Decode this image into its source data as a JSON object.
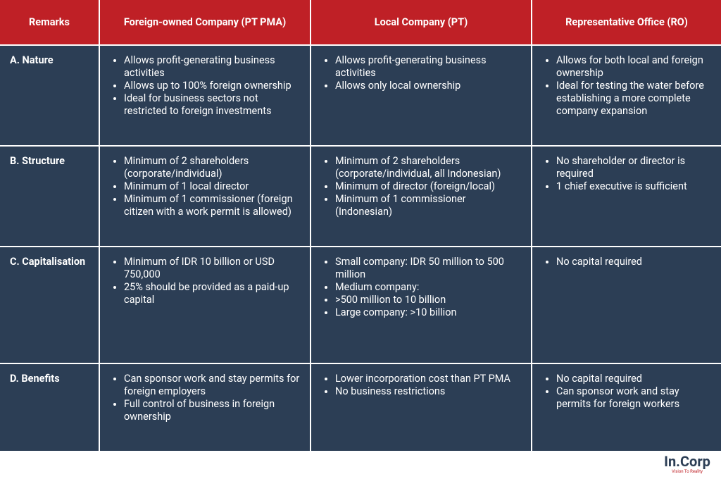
{
  "table": {
    "header": [
      "Remarks",
      "Foreign-owned Company (PT PMA)",
      "Local Company (PT)",
      "Representative Office (RO)"
    ],
    "rows": [
      {
        "remark": "A. Nature",
        "cells": [
          [
            "Allows profit-generating business activities",
            "Allows up to 100% foreign ownership",
            "Ideal for business sectors not restricted to foreign investments"
          ],
          [
            "Allows profit-generating business activities",
            "Allows only local ownership"
          ],
          [
            "Allows for both local and foreign ownership",
            "Ideal for testing the water before establishing a more complete company expansion"
          ]
        ]
      },
      {
        "remark": "B. Structure",
        "cells": [
          [
            "Minimum of 2 shareholders (corporate/individual)",
            "Minimum of 1 local director",
            "Minimum of 1 commissioner (foreign citizen with a work permit is allowed)"
          ],
          [
            "Minimum of 2 shareholders (corporate/individual, all Indonesian)",
            "Minimum of director (foreign/local)",
            "Minimum of 1 commissioner (Indonesian)"
          ],
          [
            "No shareholder or director is required",
            "1 chief executive is sufficient"
          ]
        ]
      },
      {
        "remark": "C. Capitalisation",
        "cells": [
          [
            "Minimum of IDR 10 billion or USD 750,000",
            "25% should be provided as a paid-up capital"
          ],
          [
            "Small company: IDR 50 million to 500 million",
            "Medium company:",
            ">500 million to 10 billion",
            "Large company: >10 billion"
          ],
          [
            "No capital required"
          ]
        ]
      },
      {
        "remark": "D. Benefits",
        "cells": [
          [
            "Can sponsor work and stay permits for foreign employers",
            "Full control of business in foreign ownership"
          ],
          [
            "Lower incorporation cost than PT PMA",
            "No business restrictions"
          ],
          [
            "No capital required",
            "Can sponsor work and stay permits for foreign workers"
          ]
        ]
      }
    ]
  },
  "logo": {
    "name": "In.Corp",
    "tagline": "Vision To Reality"
  }
}
